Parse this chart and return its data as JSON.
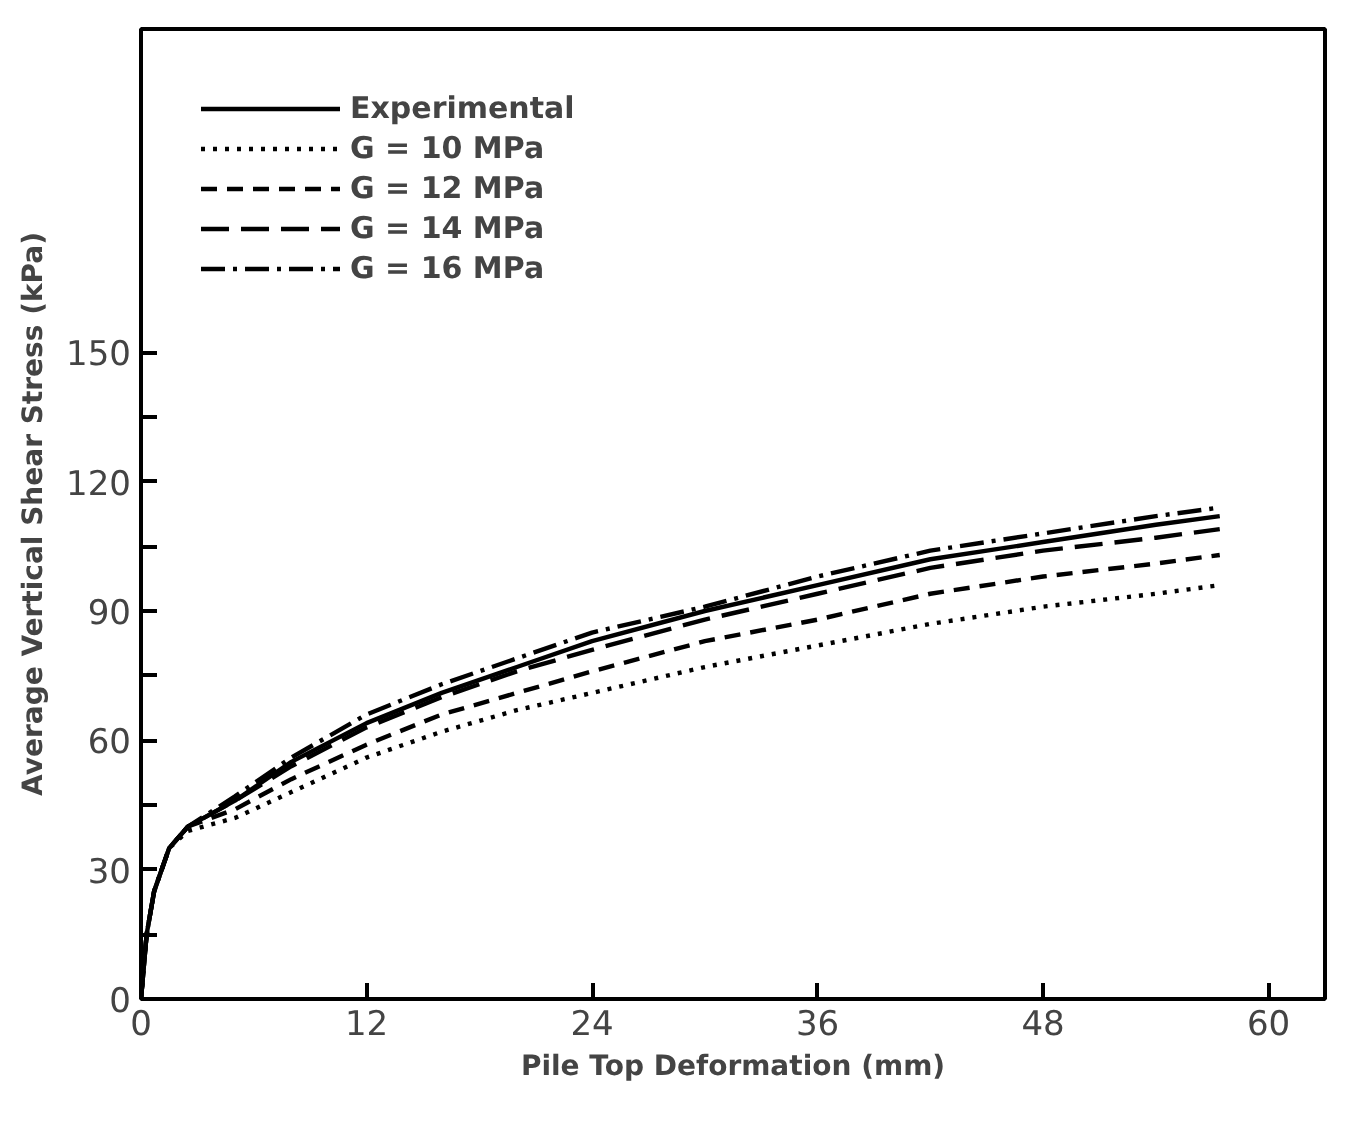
{
  "chart_data": {
    "type": "line",
    "xlabel": "Pile Top Deformation (mm)",
    "ylabel": "Average Vertical Shear Stress (kPa)",
    "xlim": [
      0,
      63
    ],
    "ylim": [
      0,
      225
    ],
    "xticks": [
      0,
      12,
      24,
      36,
      48,
      60
    ],
    "yticks": [
      0,
      {
        "value": 15,
        "label": null
      },
      30,
      {
        "value": 45,
        "label": null
      },
      60,
      {
        "value": 75,
        "label": null
      },
      90,
      {
        "value": 105,
        "label": null
      },
      120,
      {
        "value": 135,
        "label": null
      },
      150
    ],
    "grid": false,
    "legend": "top left",
    "series": [
      {
        "name": "Experimental",
        "color": "#000000",
        "line_style": "solid",
        "x": [
          0,
          0.3,
          0.7,
          1.5,
          2.5,
          5,
          8,
          12,
          16,
          20,
          24,
          30,
          36,
          42,
          48,
          54,
          57.4
        ],
        "values": [
          0,
          15,
          25,
          35,
          40,
          46,
          55,
          64,
          71,
          77,
          83,
          90,
          96,
          102,
          106,
          110,
          112
        ]
      },
      {
        "name": "G = 10 MPa",
        "color": "#000000",
        "line_style": "dotted",
        "x": [
          0,
          0.3,
          0.7,
          1.5,
          2.5,
          5,
          8,
          12,
          16,
          20,
          24,
          30,
          36,
          42,
          48,
          54,
          57.4
        ],
        "values": [
          0,
          15,
          25,
          35,
          39,
          42,
          48,
          56,
          62,
          67,
          71,
          77,
          82,
          87,
          91,
          94,
          96
        ]
      },
      {
        "name": "G = 12 MPa",
        "color": "#000000",
        "line_style": "dashed",
        "x": [
          0,
          0.3,
          0.7,
          1.5,
          2.5,
          5,
          8,
          12,
          16,
          20,
          24,
          30,
          36,
          42,
          48,
          54,
          57.4
        ],
        "values": [
          0,
          15,
          25,
          35,
          40,
          44,
          51,
          59,
          66,
          71,
          76,
          83,
          88,
          94,
          98,
          101,
          103
        ]
      },
      {
        "name": "G = 14 MPa",
        "color": "#000000",
        "line_style": "longdash",
        "x": [
          0,
          0.3,
          0.7,
          1.5,
          2.5,
          5,
          8,
          12,
          16,
          20,
          24,
          30,
          36,
          42,
          48,
          54,
          57.4
        ],
        "values": [
          0,
          15,
          25,
          35,
          40,
          46,
          54,
          63,
          70,
          76,
          81,
          88,
          94,
          100,
          104,
          107,
          109
        ]
      },
      {
        "name": "G = 16 MPa",
        "color": "#000000",
        "line_style": "dashdot",
        "x": [
          0,
          0.3,
          0.7,
          1.5,
          2.5,
          5,
          8,
          12,
          16,
          20,
          24,
          30,
          36,
          42,
          48,
          54,
          57.4
        ],
        "values": [
          0,
          15,
          25,
          35,
          40,
          47,
          56,
          66,
          73,
          79,
          85,
          91,
          98,
          104,
          108,
          112,
          114
        ]
      }
    ]
  }
}
